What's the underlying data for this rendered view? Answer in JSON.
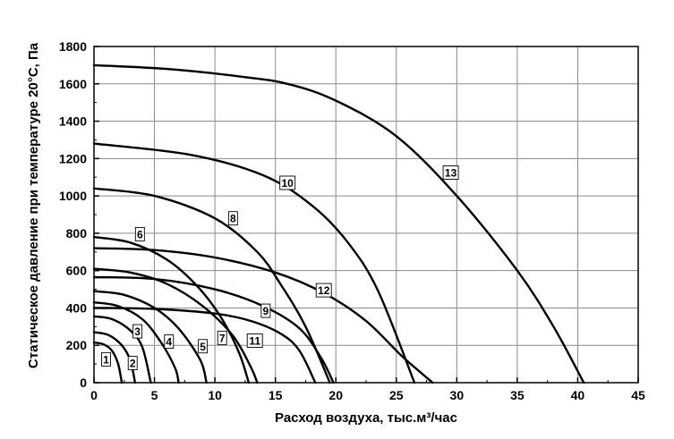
{
  "chart_data": {
    "type": "line",
    "xlabel": "Расход воздуха, тыс.м³/час",
    "ylabel": "Статическое давление при температуре 20°С, Па",
    "xlim": [
      0,
      45
    ],
    "ylim": [
      0,
      1800
    ],
    "x_ticks": [
      "0",
      "5",
      "10",
      "15",
      "20",
      "25",
      "30",
      "35",
      "40",
      "45"
    ],
    "y_ticks": [
      "0",
      "200",
      "400",
      "600",
      "800",
      "1000",
      "1200",
      "1400",
      "1600",
      "1800"
    ],
    "grid": true,
    "line_color": "#000000",
    "series": [
      {
        "name": "1",
        "points": [
          [
            0,
            215
          ],
          [
            0.8,
            205
          ],
          [
            1.5,
            170
          ],
          [
            2,
            100
          ],
          [
            2.3,
            0
          ]
        ],
        "label_at": [
          1.0,
          125
        ]
      },
      {
        "name": "2",
        "points": [
          [
            0,
            270
          ],
          [
            1.2,
            255
          ],
          [
            2.3,
            200
          ],
          [
            3,
            120
          ],
          [
            3.4,
            0
          ]
        ],
        "label_at": [
          3.2,
          105
        ]
      },
      {
        "name": "3",
        "points": [
          [
            0,
            355
          ],
          [
            1.5,
            340
          ],
          [
            3,
            280
          ],
          [
            4,
            190
          ],
          [
            4.7,
            0
          ]
        ],
        "label_at": [
          3.6,
          275
        ]
      },
      {
        "name": "4",
        "points": [
          [
            0,
            430
          ],
          [
            2,
            410
          ],
          [
            4,
            340
          ],
          [
            5.5,
            220
          ],
          [
            6.7,
            80
          ],
          [
            7,
            0
          ]
        ],
        "label_at": [
          6.2,
          220
        ]
      },
      {
        "name": "5",
        "points": [
          [
            0,
            490
          ],
          [
            2.5,
            470
          ],
          [
            5,
            400
          ],
          [
            7,
            290
          ],
          [
            8.8,
            120
          ],
          [
            9.3,
            0
          ]
        ],
        "label_at": [
          9.0,
          195
        ]
      },
      {
        "name": "6",
        "points": [
          [
            0,
            780
          ],
          [
            3,
            750
          ],
          [
            6,
            660
          ],
          [
            8.5,
            520
          ],
          [
            10.5,
            350
          ],
          [
            12,
            160
          ],
          [
            12.8,
            0
          ]
        ],
        "label_at": [
          3.8,
          795
        ]
      },
      {
        "name": "7",
        "points": [
          [
            0,
            610
          ],
          [
            3,
            590
          ],
          [
            6,
            530
          ],
          [
            9,
            410
          ],
          [
            11.5,
            250
          ],
          [
            13,
            80
          ],
          [
            13.5,
            0
          ]
        ],
        "label_at": [
          10.6,
          240
        ]
      },
      {
        "name": "8",
        "points": [
          [
            0,
            1040
          ],
          [
            5,
            1000
          ],
          [
            10,
            880
          ],
          [
            13.5,
            700
          ],
          [
            15.5,
            520
          ],
          [
            17.5,
            300
          ],
          [
            19.5,
            0
          ]
        ],
        "label_at": [
          11.5,
          880
        ]
      },
      {
        "name": "9",
        "points": [
          [
            0,
            400
          ],
          [
            5,
            395
          ],
          [
            10,
            370
          ],
          [
            13,
            330
          ],
          [
            15.5,
            260
          ],
          [
            17,
            170
          ],
          [
            18.3,
            0
          ]
        ],
        "label_at": [
          14.2,
          385
        ]
      },
      {
        "name": "10",
        "points": [
          [
            0,
            1280
          ],
          [
            8,
            1220
          ],
          [
            14,
            1110
          ],
          [
            18,
            950
          ],
          [
            21,
            750
          ],
          [
            23.5,
            490
          ],
          [
            26.5,
            0
          ]
        ],
        "label_at": [
          16.0,
          1070
        ]
      },
      {
        "name": "11",
        "points": [
          [
            0,
            565
          ],
          [
            5,
            555
          ],
          [
            10,
            500
          ],
          [
            14,
            410
          ],
          [
            17,
            290
          ],
          [
            18.8,
            130
          ],
          [
            19.8,
            0
          ]
        ],
        "label_at": [
          13.3,
          225
        ]
      },
      {
        "name": "12",
        "points": [
          [
            0,
            720
          ],
          [
            5,
            710
          ],
          [
            10,
            670
          ],
          [
            15,
            590
          ],
          [
            19,
            480
          ],
          [
            22.5,
            330
          ],
          [
            25.5,
            140
          ],
          [
            28,
            0
          ]
        ],
        "label_at": [
          19.0,
          495
        ]
      },
      {
        "name": "13",
        "points": [
          [
            0,
            1700
          ],
          [
            6,
            1680
          ],
          [
            12,
            1640
          ],
          [
            16,
            1600
          ],
          [
            20,
            1510
          ],
          [
            25,
            1320
          ],
          [
            30,
            1000
          ],
          [
            35,
            600
          ],
          [
            38,
            300
          ],
          [
            40.5,
            0
          ]
        ],
        "label_at": [
          29.5,
          1125
        ]
      }
    ]
  }
}
